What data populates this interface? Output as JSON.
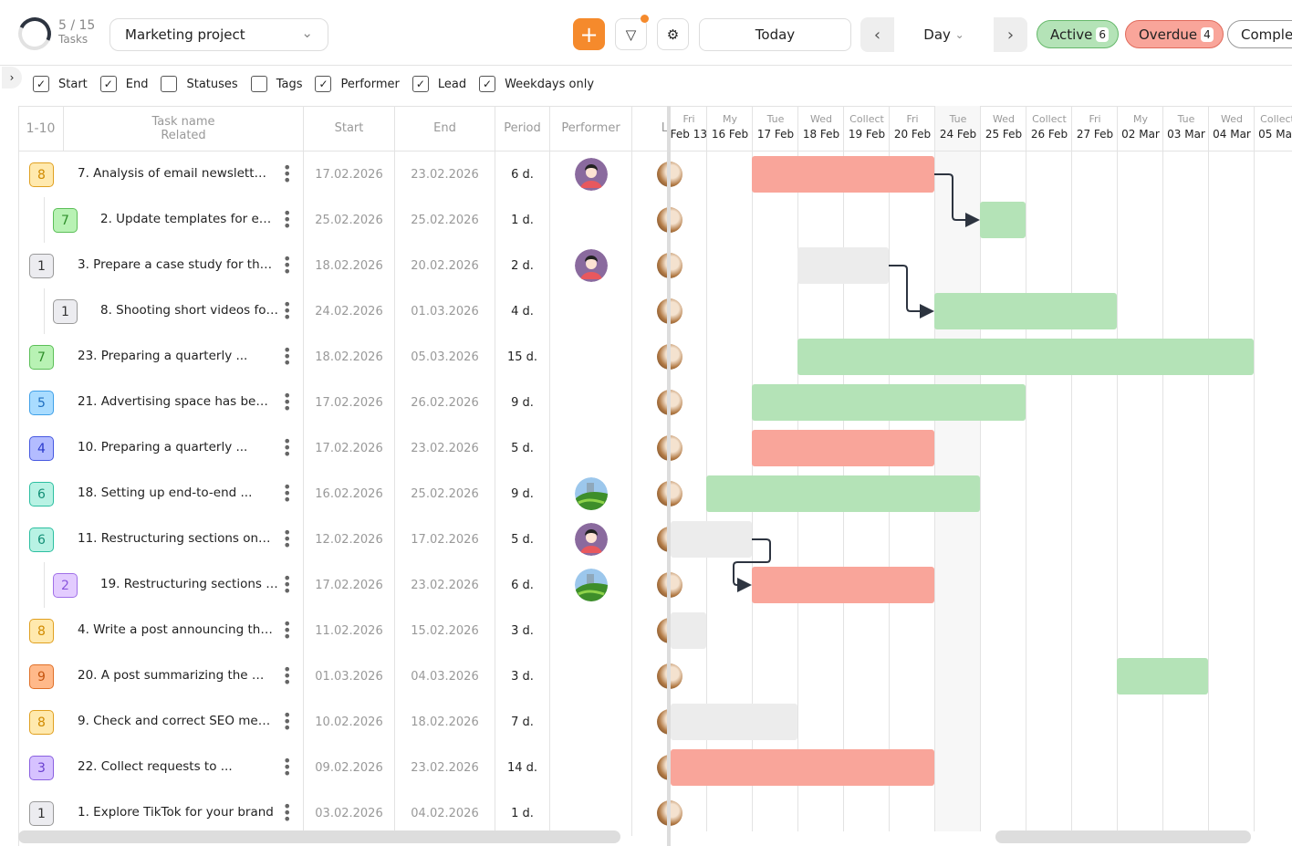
{
  "header": {
    "progress": {
      "done": 5,
      "total": 15,
      "text": "5 / 15",
      "label": "Tasks"
    },
    "project": "Marketing project",
    "add_icon": "plus-icon",
    "filter_icon": "filter-icon",
    "settings_icon": "gear-icon",
    "today": "Today",
    "view": "Day",
    "prev": "‹",
    "next": "›",
    "status_pills": [
      {
        "label": "Active",
        "count": "6",
        "color": "#b4e3b7"
      },
      {
        "label": "Overdue",
        "count": "4",
        "color": "#f9a59a"
      },
      {
        "label": "Comple",
        "count": "",
        "color": "#ffffff"
      }
    ]
  },
  "options": [
    {
      "label": "Start",
      "checked": true
    },
    {
      "label": "End",
      "checked": true
    },
    {
      "label": "Statuses",
      "checked": false
    },
    {
      "label": "Tags",
      "checked": false
    },
    {
      "label": "Performer",
      "checked": true
    },
    {
      "label": "Lead",
      "checked": true
    },
    {
      "label": "Weekdays only",
      "checked": true
    }
  ],
  "table": {
    "headers": {
      "range": "1-10",
      "task": "Task name",
      "related": "Related",
      "start": "Start",
      "end": "End",
      "period": "Period",
      "performer": "Performer",
      "lead": "L"
    },
    "rows": [
      {
        "badge": "8",
        "color": "orange",
        "name": "7. Analysis of email newsletter ...",
        "start": "17.02.2026",
        "end": "23.02.2026",
        "period": "6 d.",
        "performer": "person",
        "sub": false,
        "bar": {
          "from": "17 Feb",
          "to": "20 Feb",
          "status": "overdue"
        }
      },
      {
        "badge": "7",
        "color": "green",
        "name": "2. Update templates for ema...",
        "start": "25.02.2026",
        "end": "25.02.2026",
        "period": "1 d.",
        "performer": "",
        "sub": true,
        "bar": {
          "from": "25 Feb",
          "to": "25 Feb",
          "status": "active"
        }
      },
      {
        "badge": "1",
        "color": "gray",
        "name": "3. Prepare a case study for the ...",
        "start": "18.02.2026",
        "end": "20.02.2026",
        "period": "2 d.",
        "performer": "person",
        "sub": false,
        "bar": {
          "from": "18 Feb",
          "to": "19 Feb",
          "status": "none"
        }
      },
      {
        "badge": "1",
        "color": "gray",
        "name": "8. Shooting short videos for ...",
        "start": "24.02.2026",
        "end": "01.03.2026",
        "period": "4 d.",
        "performer": "",
        "sub": true,
        "bar": {
          "from": "24 Feb",
          "to": "27 Feb",
          "status": "active"
        }
      },
      {
        "badge": "7",
        "color": "green",
        "name": "23. Preparing a quarterly ...",
        "start": "18.02.2026",
        "end": "05.03.2026",
        "period": "15 d.",
        "performer": "",
        "sub": false,
        "bar": {
          "from": "18 Feb",
          "to": "04 Mar",
          "status": "active"
        }
      },
      {
        "badge": "5",
        "color": "blue",
        "name": "21. Advertising space has been ...",
        "start": "17.02.2026",
        "end": "26.02.2026",
        "period": "9 d.",
        "performer": "",
        "sub": false,
        "bar": {
          "from": "17 Feb",
          "to": "25 Feb",
          "status": "active"
        }
      },
      {
        "badge": "4",
        "color": "indigo",
        "name": "10. Preparing a quarterly ...",
        "start": "17.02.2026",
        "end": "23.02.2026",
        "period": "5 d.",
        "performer": "",
        "sub": false,
        "bar": {
          "from": "17 Feb",
          "to": "20 Feb",
          "status": "overdue"
        }
      },
      {
        "badge": "6",
        "color": "teal",
        "name": "18. Setting up end-to-end ...",
        "start": "16.02.2026",
        "end": "25.02.2026",
        "period": "9 d.",
        "performer": "landscape",
        "sub": false,
        "bar": {
          "from": "16 Feb",
          "to": "24 Feb",
          "status": "active"
        }
      },
      {
        "badge": "6",
        "color": "teal",
        "name": "11. Restructuring sections on the ...",
        "start": "12.02.2026",
        "end": "17.02.2026",
        "period": "5 d.",
        "performer": "person",
        "sub": false,
        "bar": {
          "from": "13 Feb",
          "to": "16 Feb",
          "status": "none"
        }
      },
      {
        "badge": "2",
        "color": "purple",
        "name": "19. Restructuring sections on ...",
        "start": "17.02.2026",
        "end": "23.02.2026",
        "period": "6 d.",
        "performer": "landscape",
        "sub": true,
        "bar": {
          "from": "17 Feb",
          "to": "20 Feb",
          "status": "overdue"
        }
      },
      {
        "badge": "8",
        "color": "orange",
        "name": "4. Write a post announcing the ...",
        "start": "11.02.2026",
        "end": "15.02.2026",
        "period": "3 d.",
        "performer": "",
        "sub": false,
        "bar": {
          "from": "13 Feb",
          "to": "13 Feb",
          "status": "none"
        }
      },
      {
        "badge": "9",
        "color": "deeporange",
        "name": "20. A post summarizing the mont...",
        "start": "01.03.2026",
        "end": "04.03.2026",
        "period": "3 d.",
        "performer": "",
        "sub": false,
        "bar": {
          "from": "02 Mar",
          "to": "03 Mar",
          "status": "active"
        }
      },
      {
        "badge": "8",
        "color": "orange",
        "name": "9. Check and correct SEO meta ...",
        "start": "10.02.2026",
        "end": "18.02.2026",
        "period": "7 d.",
        "performer": "",
        "sub": false,
        "bar": {
          "from": "13 Feb",
          "to": "17 Feb",
          "status": "none"
        }
      },
      {
        "badge": "3",
        "color": "violet",
        "name": "22. Collect requests to ...",
        "start": "09.02.2026",
        "end": "23.02.2026",
        "period": "14 d.",
        "performer": "",
        "sub": false,
        "bar": {
          "from": "13 Feb",
          "to": "20 Feb",
          "status": "overdue"
        }
      },
      {
        "badge": "1",
        "color": "gray",
        "name": "1. Explore TikTok for your brand",
        "start": "03.02.2026",
        "end": "04.02.2026",
        "period": "1 d.",
        "performer": "",
        "sub": false,
        "bar": null
      }
    ]
  },
  "gantt": {
    "columns": [
      {
        "dow": "Fri",
        "date": "13 Feb"
      },
      {
        "dow": "My",
        "date": "16 Feb"
      },
      {
        "dow": "Tue",
        "date": "17 Feb"
      },
      {
        "dow": "Wed",
        "date": "18 Feb"
      },
      {
        "dow": "Collect",
        "date": "19 Feb"
      },
      {
        "dow": "Fri",
        "date": "20 Feb"
      },
      {
        "dow": "Tue",
        "date": "24 Feb",
        "today": true
      },
      {
        "dow": "Wed",
        "date": "25 Feb"
      },
      {
        "dow": "Collect",
        "date": "26 Feb"
      },
      {
        "dow": "Fri",
        "date": "27 Feb"
      },
      {
        "dow": "My",
        "date": "02 Mar"
      },
      {
        "dow": "Tue",
        "date": "03 Mar"
      },
      {
        "dow": "Wed",
        "date": "04 Mar"
      },
      {
        "dow": "Collect",
        "date": "05 Mar"
      }
    ],
    "dependencies": [
      [
        0,
        1
      ],
      [
        2,
        3
      ],
      [
        8,
        9
      ]
    ],
    "status_colors": {
      "overdue": "#f9a59a",
      "active": "#b4e3b7",
      "none": "#ececec"
    }
  },
  "badge_colors": {
    "orange": [
      "#ffe9ae",
      "#e0a020",
      "#d08a00"
    ],
    "green": [
      "#b8f2b4",
      "#5cbf58",
      "#2f8f2b"
    ],
    "gray": [
      "#ececf0",
      "#999",
      "#333"
    ],
    "blue": [
      "#a9dcff",
      "#3fa0e8",
      "#1f6fc0"
    ],
    "indigo": [
      "#b3bcff",
      "#4658e0",
      "#2a3acc"
    ],
    "teal": [
      "#b8f2e4",
      "#2cbfa0",
      "#138f76"
    ],
    "purple": [
      "#e3ccff",
      "#a070e8",
      "#8a55dd"
    ],
    "deeporange": [
      "#ffb98a",
      "#e07028",
      "#c55510"
    ],
    "violet": [
      "#d6c2ff",
      "#8a60e0",
      "#6a3fd0"
    ]
  }
}
